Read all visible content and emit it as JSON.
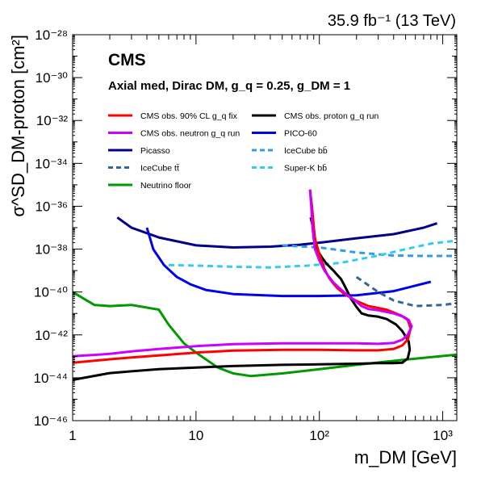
{
  "chart_data": {
    "type": "line",
    "lumi_label": "35.9 fb⁻¹ (13 TeV)",
    "experiment_label": "CMS",
    "subtitle": "Axial med, Dirac DM, g_q = 0.25, g_DM = 1",
    "xlabel": "m_DM [GeV]",
    "ylabel": "σ^SD_DM-proton [cm²]",
    "x_scale": "log",
    "y_scale": "log",
    "xlim": [
      1,
      1300
    ],
    "ylim": [
      1e-46,
      1e-28
    ],
    "x_ticks": [
      {
        "value": 1,
        "label": "1"
      },
      {
        "value": 10,
        "label": "10"
      },
      {
        "value": 100,
        "label": "10²"
      },
      {
        "value": 1000,
        "label": "10³"
      }
    ],
    "y_ticks": [
      {
        "value": 1e-28,
        "label": "10⁻²⁸"
      },
      {
        "value": 1e-30,
        "label": "10⁻³⁰"
      },
      {
        "value": 1e-32,
        "label": "10⁻³²"
      },
      {
        "value": 1e-34,
        "label": "10⁻³⁴"
      },
      {
        "value": 1e-36,
        "label": "10⁻³⁶"
      },
      {
        "value": 1e-38,
        "label": "10⁻³⁸"
      },
      {
        "value": 1e-40,
        "label": "10⁻⁴⁰"
      },
      {
        "value": 1e-42,
        "label": "10⁻⁴²"
      },
      {
        "value": 1e-44,
        "label": "10⁻⁴⁴"
      },
      {
        "value": 1e-46,
        "label": "10⁻⁴⁶"
      }
    ],
    "grid": false,
    "legend_position": "top",
    "series": [
      {
        "name": "CMS obs. 90% CL g_q fix",
        "color": "#ff0000",
        "dash": "solid",
        "points": [
          [
            1,
            5e-44
          ],
          [
            2,
            7.3e-44
          ],
          [
            3,
            8.8e-44
          ],
          [
            5,
            1.1e-43
          ],
          [
            10,
            1.5e-43
          ],
          [
            20,
            1.85e-43
          ],
          [
            50,
            2e-43
          ],
          [
            100,
            2e-43
          ],
          [
            200,
            1.9e-43
          ],
          [
            300,
            1.9e-43
          ],
          [
            400,
            2.2e-43
          ],
          [
            470,
            3.2e-43
          ],
          [
            520,
            6e-43
          ],
          [
            550,
            2e-42
          ],
          [
            520,
            5e-42
          ],
          [
            460,
            8e-42
          ],
          [
            350,
            1.5e-41
          ],
          [
            250,
            2.2e-41
          ],
          [
            200,
            3.8e-41
          ],
          [
            160,
            8e-41
          ],
          [
            140,
            1.5e-40
          ],
          [
            130,
            2.5e-40
          ],
          [
            120,
            4.5e-40
          ],
          [
            110,
            1.2e-39
          ],
          [
            100,
            6e-39
          ],
          [
            92,
            3e-38
          ],
          [
            87,
            1e-36
          ],
          [
            84,
            6e-36
          ]
        ]
      },
      {
        "name": "CMS obs. proton g_q run",
        "color": "#000000",
        "dash": "solid",
        "points": [
          [
            1,
            8e-45
          ],
          [
            2,
            1.65e-44
          ],
          [
            3,
            2e-44
          ],
          [
            5,
            2.5e-44
          ],
          [
            10,
            3e-44
          ],
          [
            20,
            3.5e-44
          ],
          [
            50,
            4e-44
          ],
          [
            100,
            4.2e-44
          ],
          [
            200,
            4.5e-44
          ],
          [
            300,
            4.8e-44
          ],
          [
            400,
            4.8e-44
          ],
          [
            470,
            5e-44
          ],
          [
            520,
            8e-44
          ],
          [
            540,
            2e-43
          ],
          [
            530,
            5e-43
          ],
          [
            510,
            7e-43
          ],
          [
            470,
            1.5e-42
          ],
          [
            420,
            3e-42
          ],
          [
            350,
            5.5e-42
          ],
          [
            300,
            7e-42
          ],
          [
            250,
            8e-42
          ],
          [
            220,
            1e-41
          ],
          [
            200,
            2e-41
          ],
          [
            180,
            5e-41
          ],
          [
            170,
            1e-40
          ],
          [
            160,
            2e-40
          ],
          [
            150,
            4e-40
          ],
          [
            130,
            1e-39
          ],
          [
            115,
            2e-39
          ],
          [
            105,
            4e-39
          ],
          [
            95,
            1e-38
          ],
          [
            90,
            8e-38
          ],
          [
            85,
            3e-37
          ]
        ]
      },
      {
        "name": "CMS obs. neutron g_q run",
        "color": "#cc00ff",
        "dash": "solid",
        "points": [
          [
            1,
            1e-43
          ],
          [
            2,
            1.3e-43
          ],
          [
            3,
            1.7e-43
          ],
          [
            5,
            2.2e-43
          ],
          [
            10,
            3e-43
          ],
          [
            20,
            3.7e-43
          ],
          [
            50,
            4e-43
          ],
          [
            100,
            4e-43
          ],
          [
            200,
            4e-43
          ],
          [
            300,
            3.8e-43
          ],
          [
            400,
            4.2e-43
          ],
          [
            470,
            6e-43
          ],
          [
            520,
            1e-42
          ],
          [
            560,
            2.5e-42
          ],
          [
            530,
            5e-42
          ],
          [
            480,
            7e-42
          ],
          [
            400,
            1e-41
          ],
          [
            300,
            1.4e-41
          ],
          [
            250,
            1.6e-41
          ],
          [
            220,
            2.2e-41
          ],
          [
            200,
            3.5e-41
          ],
          [
            175,
            6e-41
          ],
          [
            150,
            1.3e-40
          ],
          [
            130,
            2.8e-40
          ],
          [
            120,
            5e-40
          ],
          [
            110,
            1e-39
          ],
          [
            100,
            3e-39
          ],
          [
            92,
            1e-38
          ],
          [
            88,
            1e-37
          ],
          [
            86,
            1e-36
          ],
          [
            84,
            6e-36
          ]
        ]
      },
      {
        "name": "PICO-60",
        "color": "#0000ee",
        "dash": "solid",
        "points": [
          [
            4,
            1e-37
          ],
          [
            4.5,
            1e-38
          ],
          [
            5.5,
            1.8e-39
          ],
          [
            7,
            5e-40
          ],
          [
            9,
            2.3e-40
          ],
          [
            12,
            1.25e-40
          ],
          [
            20,
            8e-41
          ],
          [
            50,
            6.5e-41
          ],
          [
            100,
            6.5e-41
          ],
          [
            200,
            7e-41
          ],
          [
            400,
            1.1e-40
          ],
          [
            800,
            3e-40
          ]
        ]
      },
      {
        "name": "Picasso",
        "color": "#000088",
        "dash": "solid",
        "points": [
          [
            2.3,
            3e-37
          ],
          [
            3,
            1e-37
          ],
          [
            5,
            3.5e-38
          ],
          [
            10,
            1.5e-38
          ],
          [
            20,
            1.2e-38
          ],
          [
            40,
            1.3e-38
          ],
          [
            70,
            1.6e-38
          ],
          [
            100,
            2e-38
          ],
          [
            200,
            3.2e-38
          ],
          [
            400,
            5e-38
          ],
          [
            700,
            1e-37
          ],
          [
            900,
            1.6e-37
          ]
        ]
      },
      {
        "name": "IceCube bb̄",
        "color": "#3399ee",
        "dash": "dashed",
        "points": [
          [
            50,
            1.5e-38
          ],
          [
            100,
            1.2e-38
          ],
          [
            200,
            7e-39
          ],
          [
            400,
            5e-39
          ],
          [
            700,
            4.8e-39
          ],
          [
            1200,
            4.8e-39
          ]
        ]
      },
      {
        "name": "IceCube tt̄",
        "color": "#336699",
        "dash": "dashed",
        "points": [
          [
            200,
            5e-40
          ],
          [
            300,
            1e-40
          ],
          [
            400,
            4e-41
          ],
          [
            600,
            2.2e-41
          ],
          [
            1000,
            2.5e-41
          ],
          [
            1300,
            3e-41
          ]
        ]
      },
      {
        "name": "Super-K bb̄",
        "color": "#33ccee",
        "dash": "dashed",
        "points": [
          [
            6,
            1.8e-39
          ],
          [
            10,
            1.7e-39
          ],
          [
            20,
            1.5e-39
          ],
          [
            40,
            1.4e-39
          ],
          [
            80,
            1.7e-39
          ],
          [
            150,
            2.3e-39
          ],
          [
            300,
            5e-39
          ],
          [
            500,
            1e-38
          ],
          [
            800,
            1.8e-38
          ],
          [
            1300,
            2.5e-38
          ]
        ]
      },
      {
        "name": "Neutrino floor",
        "color": "#009900",
        "dash": "solid",
        "points": [
          [
            1,
            1e-40
          ],
          [
            1.5,
            2.5e-41
          ],
          [
            2,
            2.2e-41
          ],
          [
            3,
            2.5e-41
          ],
          [
            5,
            1.5e-41
          ],
          [
            6,
            3e-42
          ],
          [
            8,
            4e-43
          ],
          [
            10,
            1.5e-43
          ],
          [
            15,
            3e-44
          ],
          [
            20,
            1.6e-44
          ],
          [
            28,
            1.2e-44
          ],
          [
            50,
            1.6e-44
          ],
          [
            100,
            2.5e-44
          ],
          [
            200,
            4e-44
          ],
          [
            500,
            7e-44
          ],
          [
            1300,
            1.2e-43
          ]
        ]
      }
    ]
  }
}
